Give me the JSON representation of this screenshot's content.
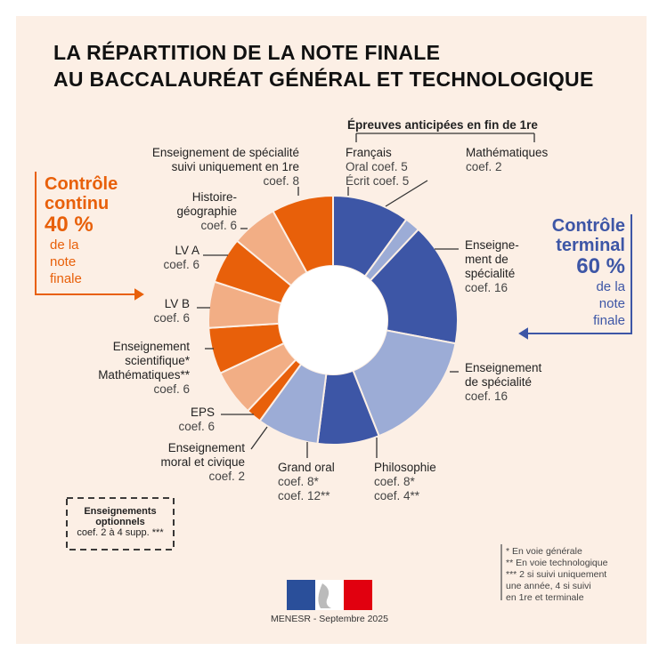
{
  "title": [
    "LA RÉPARTITION DE LA NOTE FINALE",
    "AU BACCALAURÉAT GÉNÉRAL ET TECHNOLOGIQUE"
  ],
  "continu": {
    "l1": "Contrôle",
    "l2": "continu",
    "pct": "40 %",
    "l3": "de la",
    "l4": "note",
    "l5": "finale"
  },
  "terminal": {
    "l1": "Contrôle",
    "l2": "terminal",
    "pct": "60 %",
    "l3": "de la",
    "l4": "note",
    "l5": "finale"
  },
  "anticipees": "Épreuves anticipées en fin de 1re",
  "labels": {
    "francais": [
      "Français",
      "Oral coef. 5",
      "Écrit coef. 5"
    ],
    "maths": [
      "Mathématiques",
      "coef. 2"
    ],
    "spe1": [
      "Enseigne-",
      "ment de",
      "spécialité",
      "coef. 16"
    ],
    "spe2": [
      "Enseignement",
      "de spécialité",
      "coef. 16"
    ],
    "philo": [
      "Philosophie",
      "coef. 8*",
      "coef. 4**"
    ],
    "grandoral": [
      "Grand oral",
      "coef. 8*",
      "coef. 12**"
    ],
    "emc": [
      "Enseignement",
      "moral et civique",
      "coef. 2"
    ],
    "eps": [
      "EPS",
      "coef. 6"
    ],
    "scient": [
      "Enseignement",
      "scientifique*",
      "Mathématiques**",
      "coef. 6"
    ],
    "lvb": [
      "LV B",
      "coef. 6"
    ],
    "lva": [
      "LV A",
      "coef. 6"
    ],
    "hg": [
      "Histoire-",
      "géographie",
      "coef. 6"
    ],
    "spe1re": [
      "Enseignement de spécialité",
      "suivi uniquement en 1re",
      "coef. 8"
    ]
  },
  "optionnels": [
    "Enseignements",
    "optionnels",
    "coef. 2 à 4 supp. ***"
  ],
  "notes": [
    "* En voie générale",
    "** En voie technologique",
    "*** 2 si suivi uniquement",
    "une année, 4 si suivi",
    "en 1re et terminale"
  ],
  "footer": "MENESR - Septembre 2025",
  "colors": {
    "dark_blue": "#3d56a6",
    "light_blue": "#9cacd6",
    "orange": "#e8600a",
    "light_orange": "#f2ae85",
    "bg": "#fcefe5"
  },
  "chart_data": {
    "type": "pie",
    "donut": true,
    "title": "La répartition de la note finale au baccalauréat général et technologique",
    "categories": [
      "Français",
      "Mathématiques",
      "Enseignement de spécialité",
      "Enseignement de spécialité",
      "Philosophie",
      "Grand oral",
      "Enseignement moral et civique",
      "EPS",
      "Enseignement scientifique / Mathématiques",
      "LV B",
      "LV A",
      "Histoire-géographie",
      "Enseignement de spécialité suivi uniquement en 1re"
    ],
    "values": [
      10,
      2,
      16,
      16,
      8,
      8,
      2,
      6,
      6,
      6,
      6,
      6,
      8
    ],
    "groups": [
      "terminal",
      "terminal",
      "terminal",
      "terminal",
      "terminal",
      "terminal",
      "continu",
      "continu",
      "continu",
      "continu",
      "continu",
      "continu",
      "continu"
    ],
    "slice_colors": [
      "#3d56a6",
      "#9cacd6",
      "#3d56a6",
      "#9cacd6",
      "#3d56a6",
      "#9cacd6",
      "#e8600a",
      "#f2ae85",
      "#e8600a",
      "#f2ae85",
      "#e8600a",
      "#f2ae85",
      "#e8600a"
    ],
    "totals": {
      "controle_terminal": 60,
      "controle_continu": 40
    }
  }
}
